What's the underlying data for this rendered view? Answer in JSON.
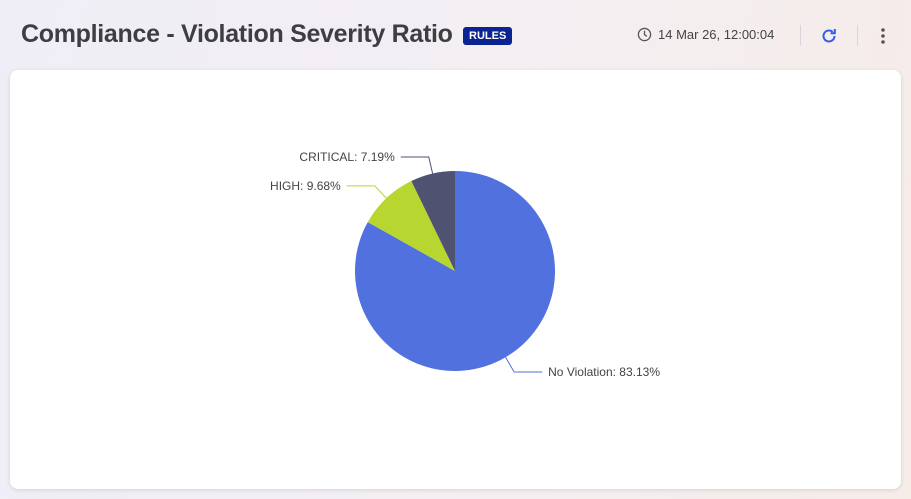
{
  "header": {
    "title": "Compliance - Violation Severity Ratio",
    "badge": "RULES",
    "timestamp": "14 Mar 26, 12:00:04",
    "icons": [
      "clock-icon",
      "refresh-icon",
      "more-vertical-icon"
    ]
  },
  "chart_data": {
    "type": "pie",
    "title": "",
    "start": "top",
    "direction": "clockwise",
    "slices": [
      {
        "name": "No Violation",
        "value": 83.13,
        "label": "No Violation: 83.13%",
        "color": "#5071de"
      },
      {
        "name": "HIGH",
        "value": 9.68,
        "label": "HIGH: 9.68%",
        "color": "#b7d630"
      },
      {
        "name": "CRITICAL",
        "value": 7.19,
        "label": "CRITICAL: 7.19%",
        "color": "#4f5270"
      }
    ]
  }
}
